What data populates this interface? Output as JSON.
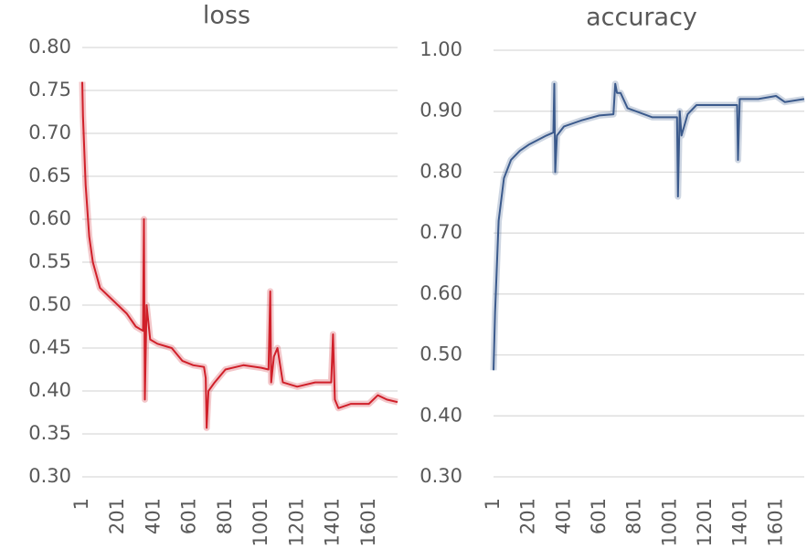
{
  "chart_data": [
    {
      "type": "line",
      "title": "loss",
      "color": "#d0202a",
      "grid": true,
      "xlim": [
        1,
        1760
      ],
      "xticks": [
        1,
        201,
        401,
        601,
        801,
        1001,
        1201,
        1401,
        1601
      ],
      "ylim": [
        0.3,
        0.8
      ],
      "yticks": [
        {
          "value": 0.3,
          "label": "0.30"
        },
        {
          "value": 0.35,
          "label": "0.35"
        },
        {
          "value": 0.4,
          "label": "0.40"
        },
        {
          "value": 0.45,
          "label": "0.45"
        },
        {
          "value": 0.5,
          "label": "0.50"
        },
        {
          "value": 0.55,
          "label": "0.55"
        },
        {
          "value": 0.6,
          "label": "0.60"
        },
        {
          "value": 0.65,
          "label": "0.65"
        },
        {
          "value": 0.7,
          "label": "0.70"
        },
        {
          "value": 0.75,
          "label": "0.75"
        },
        {
          "value": 0.8,
          "label": "0.80"
        }
      ],
      "x": [
        1,
        5,
        20,
        40,
        60,
        100,
        150,
        200,
        250,
        300,
        340,
        345,
        350,
        360,
        380,
        420,
        500,
        560,
        620,
        680,
        690,
        695,
        705,
        740,
        800,
        900,
        1000,
        1040,
        1050,
        1055,
        1070,
        1090,
        1120,
        1200,
        1300,
        1390,
        1400,
        1410,
        1430,
        1500,
        1600,
        1650,
        1700,
        1760
      ],
      "values": [
        0.76,
        0.72,
        0.64,
        0.58,
        0.55,
        0.52,
        0.51,
        0.5,
        0.49,
        0.475,
        0.47,
        0.6,
        0.39,
        0.5,
        0.46,
        0.455,
        0.45,
        0.435,
        0.43,
        0.428,
        0.415,
        0.357,
        0.4,
        0.41,
        0.425,
        0.43,
        0.427,
        0.425,
        0.516,
        0.41,
        0.44,
        0.45,
        0.41,
        0.405,
        0.41,
        0.41,
        0.466,
        0.39,
        0.38,
        0.385,
        0.385,
        0.395,
        0.39,
        0.387
      ]
    },
    {
      "type": "line",
      "title": "accuracy",
      "color": "#3b5a8c",
      "grid": true,
      "xlim": [
        1,
        1760
      ],
      "xticks": [
        1,
        201,
        401,
        601,
        801,
        1001,
        1201,
        1401,
        1601
      ],
      "ylim": [
        0.3,
        1.0
      ],
      "yticks": [
        {
          "value": 0.3,
          "label": "0.30"
        },
        {
          "value": 0.4,
          "label": "0.40"
        },
        {
          "value": 0.5,
          "label": "0.50"
        },
        {
          "value": 0.6,
          "label": "0.60"
        },
        {
          "value": 0.7,
          "label": "0.70"
        },
        {
          "value": 0.8,
          "label": "0.80"
        },
        {
          "value": 0.9,
          "label": "0.90"
        },
        {
          "value": 1.0,
          "label": "1.00"
        }
      ],
      "x": [
        1,
        10,
        30,
        60,
        100,
        150,
        200,
        300,
        340,
        345,
        350,
        360,
        400,
        500,
        600,
        680,
        690,
        700,
        720,
        760,
        900,
        1000,
        1040,
        1045,
        1055,
        1065,
        1100,
        1150,
        1300,
        1380,
        1385,
        1395,
        1500,
        1600,
        1650,
        1760
      ],
      "values": [
        0.475,
        0.57,
        0.72,
        0.79,
        0.82,
        0.835,
        0.845,
        0.86,
        0.865,
        0.945,
        0.8,
        0.86,
        0.875,
        0.885,
        0.893,
        0.895,
        0.945,
        0.93,
        0.93,
        0.905,
        0.89,
        0.89,
        0.89,
        0.76,
        0.9,
        0.86,
        0.895,
        0.91,
        0.91,
        0.91,
        0.82,
        0.92,
        0.92,
        0.925,
        0.915,
        0.92
      ]
    }
  ]
}
